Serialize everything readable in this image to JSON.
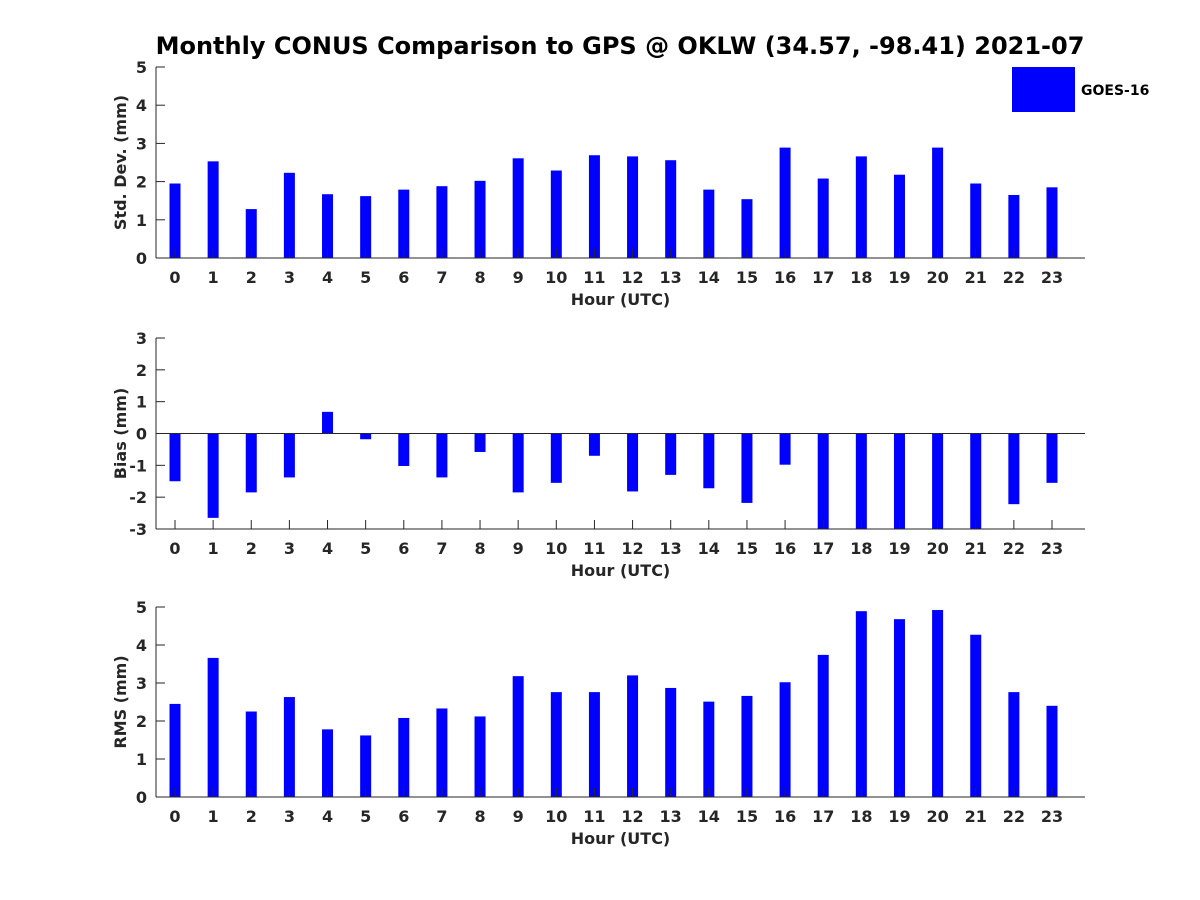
{
  "figure_title": "Monthly CONUS Comparison to GPS @ OKLW (34.57, -98.41) 2021-07",
  "legend": {
    "label": "GOES-16",
    "color": "#0000ff"
  },
  "colors": {
    "bar": "#0000ff",
    "axis": "#262626"
  },
  "chart_data": [
    {
      "type": "bar",
      "title": "Monthly CONUS Comparison to GPS @ OKLW (34.57, -98.41) 2021-07",
      "xlabel": "Hour (UTC)",
      "ylabel": "Std. Dev. (mm)",
      "ylim": [
        0,
        5
      ],
      "yticks": [
        0,
        1,
        2,
        3,
        4,
        5
      ],
      "zero_line": false,
      "categories": [
        "0",
        "1",
        "2",
        "3",
        "4",
        "5",
        "6",
        "7",
        "8",
        "9",
        "10",
        "11",
        "12",
        "13",
        "14",
        "15",
        "16",
        "17",
        "18",
        "19",
        "20",
        "21",
        "22",
        "23"
      ],
      "series": [
        {
          "name": "GOES-16",
          "values": [
            1.95,
            2.53,
            1.28,
            2.23,
            1.67,
            1.62,
            1.79,
            1.88,
            2.02,
            2.61,
            2.29,
            2.69,
            2.66,
            2.56,
            1.79,
            1.54,
            2.89,
            2.08,
            2.66,
            2.18,
            2.89,
            1.95,
            1.65,
            1.85
          ]
        }
      ]
    },
    {
      "type": "bar",
      "title": "",
      "xlabel": "Hour (UTC)",
      "ylabel": "Bias (mm)",
      "ylim": [
        -3,
        3
      ],
      "yticks": [
        -3,
        -2,
        -1,
        0,
        1,
        2,
        3
      ],
      "zero_line": true,
      "categories": [
        "0",
        "1",
        "2",
        "3",
        "4",
        "5",
        "6",
        "7",
        "8",
        "9",
        "10",
        "11",
        "12",
        "13",
        "14",
        "15",
        "16",
        "17",
        "18",
        "19",
        "20",
        "21",
        "22",
        "23"
      ],
      "series": [
        {
          "name": "GOES-16",
          "values": [
            -1.5,
            -2.65,
            -1.85,
            -1.38,
            0.68,
            -0.18,
            -1.02,
            -1.38,
            -0.58,
            -1.85,
            -1.55,
            -0.7,
            -1.82,
            -1.3,
            -1.72,
            -2.18,
            -0.98,
            -3.0,
            -3.0,
            -3.0,
            -3.0,
            -3.0,
            -2.22,
            -1.55
          ]
        }
      ]
    },
    {
      "type": "bar",
      "title": "",
      "xlabel": "Hour (UTC)",
      "ylabel": "RMS (mm)",
      "ylim": [
        0,
        5
      ],
      "yticks": [
        0,
        1,
        2,
        3,
        4,
        5
      ],
      "zero_line": false,
      "categories": [
        "0",
        "1",
        "2",
        "3",
        "4",
        "5",
        "6",
        "7",
        "8",
        "9",
        "10",
        "11",
        "12",
        "13",
        "14",
        "15",
        "16",
        "17",
        "18",
        "19",
        "20",
        "21",
        "22",
        "23"
      ],
      "series": [
        {
          "name": "GOES-16",
          "values": [
            2.45,
            3.66,
            2.25,
            2.63,
            1.78,
            1.62,
            2.08,
            2.33,
            2.12,
            3.18,
            2.76,
            2.76,
            3.2,
            2.87,
            2.51,
            2.66,
            3.02,
            3.74,
            4.89,
            4.68,
            4.92,
            4.27,
            2.76,
            2.4
          ]
        }
      ]
    }
  ]
}
